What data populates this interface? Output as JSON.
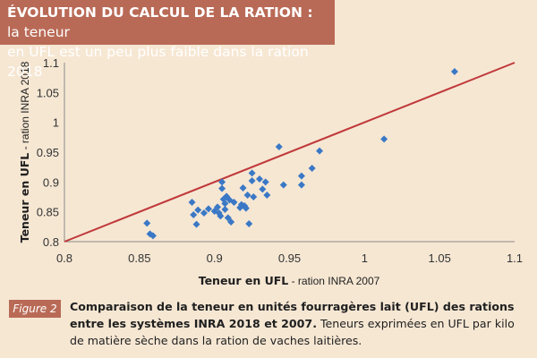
{
  "header": {
    "title_bold": "ÉVOLUTION DU CALCUL DE LA RATION :",
    "title_rest_1": " la teneur",
    "title_line2": "en UFL est un peu plus faible dans la ration 2018"
  },
  "caption": {
    "figure_label": "Figure 2",
    "bold_text": "Comparaison de la teneur en unités fourragères lait (UFL) des rations entre les systèmes INRA 2018 et  2007.",
    "rest_text": " Teneurs exprimées en UFL par kilo de matière sèche dans la ration de vaches laitières."
  },
  "colors": {
    "header_bg": "#b96a56",
    "page_bg": "#f6e7d3",
    "points": "#3a78c6",
    "line": "#c0393b"
  },
  "chart_data": {
    "type": "scatter",
    "xlabel_bold": "Teneur en UFL",
    "xlabel_rest": " - ration INRA 2007",
    "ylabel_bold": "Teneur en UFL",
    "ylabel_rest": " - ration INRA 2018",
    "xlim": [
      0.8,
      1.1
    ],
    "ylim": [
      0.8,
      1.1
    ],
    "x_ticks": [
      "0.8",
      "0.85",
      "0.9",
      "0.95",
      "1",
      "1.05",
      "1.1"
    ],
    "y_ticks": [
      "0.8",
      "0.85",
      "0.9",
      "0.95",
      "1",
      "1.05",
      "1.1"
    ],
    "line": {
      "x": [
        0.8,
        1.1
      ],
      "y": [
        0.8,
        1.1
      ]
    },
    "points": [
      {
        "x": 0.855,
        "y": 0.831
      },
      {
        "x": 0.857,
        "y": 0.813
      },
      {
        "x": 0.859,
        "y": 0.81
      },
      {
        "x": 0.885,
        "y": 0.866
      },
      {
        "x": 0.886,
        "y": 0.845
      },
      {
        "x": 0.888,
        "y": 0.829
      },
      {
        "x": 0.889,
        "y": 0.853
      },
      {
        "x": 0.893,
        "y": 0.848
      },
      {
        "x": 0.896,
        "y": 0.855
      },
      {
        "x": 0.9,
        "y": 0.851
      },
      {
        "x": 0.902,
        "y": 0.858
      },
      {
        "x": 0.903,
        "y": 0.848
      },
      {
        "x": 0.904,
        "y": 0.843
      },
      {
        "x": 0.905,
        "y": 0.9
      },
      {
        "x": 0.905,
        "y": 0.889
      },
      {
        "x": 0.906,
        "y": 0.871
      },
      {
        "x": 0.907,
        "y": 0.864
      },
      {
        "x": 0.907,
        "y": 0.854
      },
      {
        "x": 0.908,
        "y": 0.876
      },
      {
        "x": 0.909,
        "y": 0.84
      },
      {
        "x": 0.91,
        "y": 0.87
      },
      {
        "x": 0.911,
        "y": 0.833
      },
      {
        "x": 0.913,
        "y": 0.866
      },
      {
        "x": 0.917,
        "y": 0.857
      },
      {
        "x": 0.918,
        "y": 0.862
      },
      {
        "x": 0.919,
        "y": 0.89
      },
      {
        "x": 0.92,
        "y": 0.86
      },
      {
        "x": 0.921,
        "y": 0.856
      },
      {
        "x": 0.922,
        "y": 0.878
      },
      {
        "x": 0.923,
        "y": 0.83
      },
      {
        "x": 0.925,
        "y": 0.902
      },
      {
        "x": 0.925,
        "y": 0.915
      },
      {
        "x": 0.926,
        "y": 0.875
      },
      {
        "x": 0.93,
        "y": 0.905
      },
      {
        "x": 0.932,
        "y": 0.888
      },
      {
        "x": 0.934,
        "y": 0.9
      },
      {
        "x": 0.935,
        "y": 0.878
      },
      {
        "x": 0.943,
        "y": 0.959
      },
      {
        "x": 0.946,
        "y": 0.895
      },
      {
        "x": 0.958,
        "y": 0.91
      },
      {
        "x": 0.958,
        "y": 0.895
      },
      {
        "x": 0.965,
        "y": 0.923
      },
      {
        "x": 0.97,
        "y": 0.952
      },
      {
        "x": 1.013,
        "y": 0.972
      },
      {
        "x": 1.06,
        "y": 1.085
      }
    ]
  }
}
